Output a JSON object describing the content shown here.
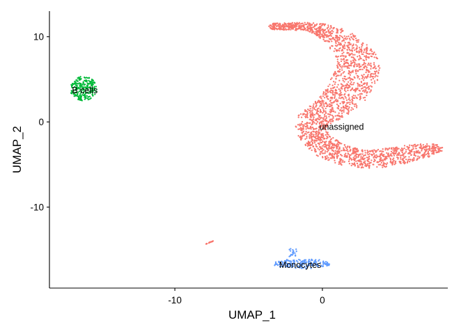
{
  "chart_data": {
    "type": "scatter",
    "title": "",
    "xlabel": "UMAP_1",
    "ylabel": "UMAP_2",
    "xlim": [
      -18.5,
      8.5
    ],
    "ylim": [
      -19.5,
      13
    ],
    "x_ticks": [
      -10,
      0
    ],
    "y_ticks": [
      -10,
      0,
      10
    ],
    "grid": false,
    "legend": "none",
    "clusters": [
      {
        "label": "unassigned",
        "color": "#F8766D",
        "label_pos": [
          1.3,
          -0.6
        ],
        "approx_points": 2400
      },
      {
        "label": "B cells",
        "color": "#00BA38",
        "label_pos": [
          -16.1,
          3.7
        ],
        "approx_points": 240
      },
      {
        "label": "Monocytes",
        "color": "#619CFF",
        "label_pos": [
          -1.5,
          -16.8
        ],
        "approx_points": 200
      }
    ]
  }
}
